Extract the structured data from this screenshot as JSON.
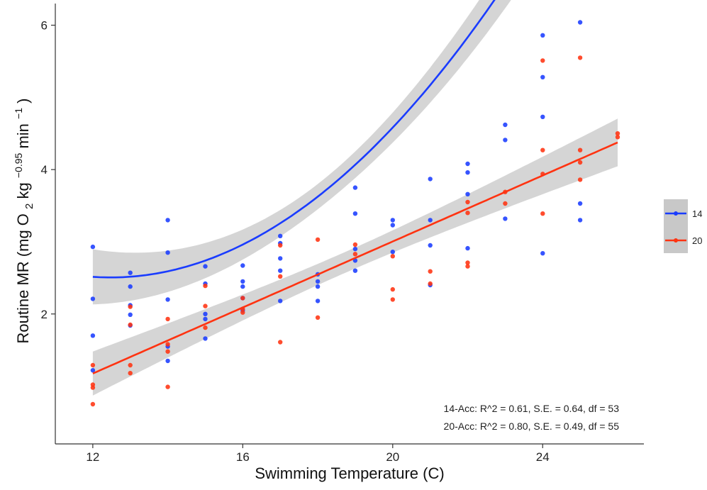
{
  "chart_data": {
    "type": "scatter",
    "title": "",
    "xlabel": "Swimming Temperature (C)",
    "ylabel": "Routine MR",
    "ylabel_units": {
      "open": "(mg O",
      "sub": "2",
      "mid": " kg",
      "sup1": "−0.95",
      "min": " min",
      "sup2": "−1",
      "close": ")"
    },
    "xlim": [
      11,
      26.7
    ],
    "ylim": [
      0.2,
      6.3
    ],
    "xticks": [
      12,
      16,
      20,
      24
    ],
    "yticks": [
      2,
      4,
      6
    ],
    "grid": false,
    "legend_position": "right",
    "series": [
      {
        "name": "14",
        "color": "#1a3cff",
        "points": [
          [
            12,
            2.93
          ],
          [
            12,
            2.21
          ],
          [
            12,
            1.7
          ],
          [
            12,
            1.22
          ],
          [
            13,
            2.57
          ],
          [
            13,
            2.38
          ],
          [
            13,
            2.12
          ],
          [
            13,
            1.99
          ],
          [
            13,
            1.84
          ],
          [
            14,
            3.3
          ],
          [
            14,
            2.85
          ],
          [
            14,
            2.2
          ],
          [
            14,
            1.55
          ],
          [
            14,
            1.35
          ],
          [
            15,
            2.66
          ],
          [
            15,
            2.42
          ],
          [
            15,
            2.0
          ],
          [
            15,
            1.93
          ],
          [
            15,
            1.66
          ],
          [
            16,
            2.67
          ],
          [
            16,
            2.45
          ],
          [
            16,
            2.38
          ],
          [
            16,
            2.22
          ],
          [
            16,
            2.05
          ],
          [
            17,
            3.08
          ],
          [
            17,
            2.98
          ],
          [
            17,
            2.77
          ],
          [
            17,
            2.6
          ],
          [
            17,
            2.18
          ],
          [
            18,
            2.55
          ],
          [
            18,
            2.45
          ],
          [
            18,
            2.38
          ],
          [
            18,
            2.18
          ],
          [
            19,
            3.75
          ],
          [
            19,
            3.39
          ],
          [
            19,
            2.9
          ],
          [
            19,
            2.74
          ],
          [
            19,
            2.6
          ],
          [
            20,
            3.3
          ],
          [
            20,
            3.23
          ],
          [
            20,
            2.86
          ],
          [
            21,
            3.87
          ],
          [
            21,
            3.3
          ],
          [
            21,
            2.95
          ],
          [
            21,
            2.4
          ],
          [
            22,
            4.08
          ],
          [
            22,
            3.96
          ],
          [
            22,
            3.66
          ],
          [
            22,
            2.91
          ],
          [
            23,
            4.62
          ],
          [
            23,
            4.41
          ],
          [
            23,
            3.32
          ],
          [
            24,
            5.86
          ],
          [
            24,
            5.28
          ],
          [
            24,
            4.73
          ],
          [
            24,
            2.84
          ],
          [
            25,
            6.04
          ],
          [
            25,
            3.53
          ],
          [
            25,
            3.3
          ]
        ],
        "fit": {
          "x0": 12,
          "x1": 25,
          "coef": [
            8.216,
            -0.9153,
            0.03668
          ]
        }
      },
      {
        "name": "20",
        "color": "#ff3311",
        "points": [
          [
            12,
            1.29
          ],
          [
            12,
            1.02
          ],
          [
            12,
            0.98
          ],
          [
            12,
            0.75
          ],
          [
            13,
            2.1
          ],
          [
            13,
            1.85
          ],
          [
            13,
            1.29
          ],
          [
            13,
            1.18
          ],
          [
            14,
            1.93
          ],
          [
            14,
            1.58
          ],
          [
            14,
            1.48
          ],
          [
            14,
            0.99
          ],
          [
            15,
            2.39
          ],
          [
            15,
            2.11
          ],
          [
            15,
            1.81
          ],
          [
            16,
            2.22
          ],
          [
            16,
            2.07
          ],
          [
            16,
            2.02
          ],
          [
            17,
            2.95
          ],
          [
            17,
            2.52
          ],
          [
            17,
            1.61
          ],
          [
            18,
            3.03
          ],
          [
            18,
            1.95
          ],
          [
            19,
            2.96
          ],
          [
            19,
            2.83
          ],
          [
            20,
            2.8
          ],
          [
            20,
            2.34
          ],
          [
            20,
            2.2
          ],
          [
            21,
            2.59
          ],
          [
            21,
            2.42
          ],
          [
            22,
            3.55
          ],
          [
            22,
            3.4
          ],
          [
            22,
            2.71
          ],
          [
            22,
            2.66
          ],
          [
            23,
            3.69
          ],
          [
            23,
            3.53
          ],
          [
            24,
            5.51
          ],
          [
            24,
            4.27
          ],
          [
            24,
            3.94
          ],
          [
            24,
            3.39
          ],
          [
            25,
            5.55
          ],
          [
            25,
            4.27
          ],
          [
            25,
            4.1
          ],
          [
            25,
            3.86
          ],
          [
            26,
            4.5
          ],
          [
            26,
            4.45
          ]
        ],
        "fit": {
          "x0": 12,
          "x1": 26,
          "coef": [
            -1.568,
            0.2286,
            0
          ]
        }
      }
    ],
    "annotations": [
      "14-Acc: R^2 = 0.61, S.E. = 0.64, df = 53",
      "20-Acc: R^2 = 0.80, S.E. = 0.49, df = 55"
    ]
  }
}
